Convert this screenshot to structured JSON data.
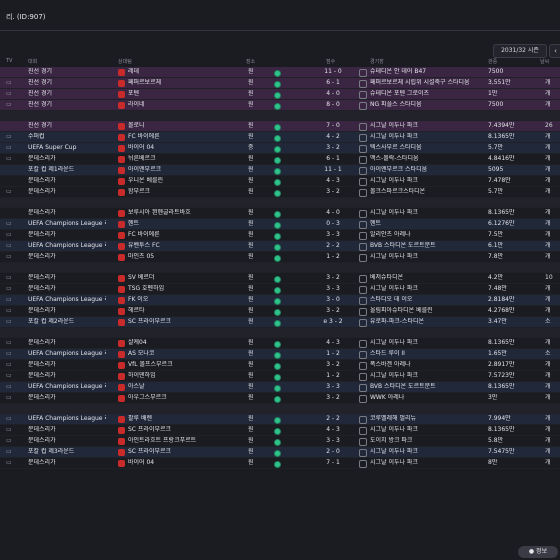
{
  "window": {
    "title": "리. (ID:907)"
  },
  "filters": {
    "season": "2031/32 시즌",
    "prev_icon": "chevron-left-icon"
  },
  "columns": {
    "tv": "TV",
    "competition": "대회",
    "opponent": "상대팀",
    "venue": "장소",
    "result": "",
    "score": "점수",
    "stadium": "경기장",
    "attendance": "관중",
    "rating": "날씨"
  },
  "rows": [
    {
      "tv": "",
      "comp": "친선 경기",
      "opp": "레데",
      "venue": "원",
      "score": "11 - 0",
      "stadium": "슈테디온 안 데어 B47",
      "att": "7500",
      "rating": "",
      "type": "cup"
    },
    {
      "tv": "▭",
      "comp": "친선 경기",
      "opp": "페퍼르보르체",
      "venue": "원",
      "score": "6 - 1",
      "stadium": "페퍼르보르체 시립위 시설축구 스타디움",
      "att": "3,551만",
      "rating": "개",
      "type": "cup"
    },
    {
      "tv": "▭",
      "comp": "친선 경기",
      "opp": "포텐",
      "venue": "원",
      "score": "4 - 0",
      "stadium": "슈테디온 포텐 그로이츠",
      "att": "1만",
      "rating": "개",
      "type": "cup"
    },
    {
      "tv": "▭",
      "comp": "친선 경기",
      "opp": "라이네",
      "venue": "원",
      "score": "8 - 0",
      "stadium": "NG 피플스 스타디움",
      "att": "7500",
      "rating": "개",
      "type": "cup"
    },
    {
      "tv": "",
      "comp": "",
      "opp": "",
      "venue": "",
      "score": "",
      "stadium": "",
      "att": "",
      "rating": "",
      "type": "gap"
    },
    {
      "tv": "",
      "comp": "친선 경기",
      "opp": "볼로니",
      "venue": "원",
      "score": "7 - 0",
      "stadium": "시그날 이두나 파크",
      "att": "7.4394만",
      "rating": "26",
      "type": "cup"
    },
    {
      "tv": "▭",
      "comp": "수퍼컵",
      "opp": "FC 바이에른",
      "venue": "원",
      "score": "4 - 2",
      "stadium": "시그날 이두나 파크",
      "att": "8.1365만",
      "rating": "개",
      "type": "away"
    },
    {
      "tv": "▭",
      "comp": "UEFA Super Cup",
      "opp": "바이어 04",
      "venue": "중",
      "score": "3 - 2",
      "stadium": "텍스사부르 스타디움",
      "att": "5.7만",
      "rating": "개",
      "type": "away"
    },
    {
      "tv": "▭",
      "comp": "분데스리가",
      "opp": "뉘른베르크",
      "venue": "원",
      "score": "6 - 1",
      "stadium": "맥스-몰락-스타디움",
      "att": "4.8416만",
      "rating": "개",
      "type": "league"
    },
    {
      "tv": "",
      "comp": "포칼 컵 제1라운드",
      "opp": "아이엔부르크",
      "venue": "원",
      "score": "11 - 1",
      "stadium": "아이엔부르크 스타디움",
      "att": "5095",
      "rating": "개",
      "type": "away"
    },
    {
      "tv": "",
      "comp": "분데스리가",
      "opp": "우니온 베를린",
      "venue": "원",
      "score": "4 - 3",
      "stadium": "시그날 이두나 파크",
      "att": "7.478만",
      "rating": "개",
      "type": "league"
    },
    {
      "tv": "▭",
      "comp": "분데스리가",
      "opp": "함부르크",
      "venue": "원",
      "score": "3 - 2",
      "stadium": "볼크스파르크스타디온",
      "att": "5.7만",
      "rating": "개",
      "type": "league"
    },
    {
      "tv": "",
      "comp": "",
      "opp": "",
      "venue": "",
      "score": "",
      "stadium": "",
      "att": "",
      "rating": "",
      "type": "gap"
    },
    {
      "tv": "",
      "comp": "분데스리가",
      "opp": "보루시아 묀헨글라트바흐",
      "venue": "원",
      "score": "4 - 0",
      "stadium": "시그날 이두나 파크",
      "att": "8.1365만",
      "rating": "개",
      "type": "league"
    },
    {
      "tv": "▭",
      "comp": "UEFA Champions League 리...",
      "opp": "헨트",
      "venue": "원",
      "score": "0 - 3",
      "stadium": "헨트",
      "att": "6.1276만",
      "rating": "개",
      "type": "away"
    },
    {
      "tv": "▭",
      "comp": "분데스리가",
      "opp": "FC 바이에른",
      "venue": "원",
      "score": "3 - 3",
      "stadium": "알리안츠 아레나",
      "att": "7.5만",
      "rating": "개",
      "type": "league"
    },
    {
      "tv": "▭",
      "comp": "UEFA Champions League 리...",
      "opp": "유벤투스 FC",
      "venue": "원",
      "score": "2 - 2",
      "stadium": "BVB 스타디온 도르트문트",
      "att": "6.1만",
      "rating": "개",
      "type": "away"
    },
    {
      "tv": "▭",
      "comp": "분데스리가",
      "opp": "마인츠 05",
      "venue": "원",
      "score": "1 - 2",
      "stadium": "시그날 이두나 파크",
      "att": "7.8만",
      "rating": "개",
      "type": "league"
    },
    {
      "tv": "",
      "comp": "",
      "opp": "",
      "venue": "",
      "score": "",
      "stadium": "",
      "att": "",
      "rating": "",
      "type": "gap"
    },
    {
      "tv": "▭",
      "comp": "분데스리가",
      "opp": "SV 베르더",
      "venue": "원",
      "score": "3 - 2",
      "stadium": "베저슈타디온",
      "att": "4.2만",
      "rating": "10",
      "type": "league"
    },
    {
      "tv": "▭",
      "comp": "분데스리가",
      "opp": "TSG 호펜하임",
      "venue": "원",
      "score": "3 - 3",
      "stadium": "시그날 이두나 파크",
      "att": "7.48만",
      "rating": "개",
      "type": "league"
    },
    {
      "tv": "▭",
      "comp": "UEFA Champions League 리...",
      "opp": "FK 이오",
      "venue": "원",
      "score": "3 - 0",
      "stadium": "스타디오 데 이오",
      "att": "2.8184만",
      "rating": "개",
      "type": "away"
    },
    {
      "tv": "▭",
      "comp": "분데스리가",
      "opp": "헤르타",
      "venue": "원",
      "score": "3 - 2",
      "stadium": "올림피아슈타디온 베를린",
      "att": "4.2768만",
      "rating": "개",
      "type": "league"
    },
    {
      "tv": "▭",
      "comp": "포칼 컵 제2라운드",
      "opp": "SC 프라이부르크",
      "venue": "원",
      "score": "e 3 - 2",
      "stadium": "유로파-파크-스타디온",
      "att": "3.47만",
      "rating": "소",
      "type": "away"
    },
    {
      "tv": "",
      "comp": "",
      "opp": "",
      "venue": "",
      "score": "",
      "stadium": "",
      "att": "",
      "rating": "",
      "type": "gap"
    },
    {
      "tv": "▭",
      "comp": "분데스리가",
      "opp": "샬케04",
      "venue": "원",
      "score": "4 - 3",
      "stadium": "시그날 이두나 파크",
      "att": "8.1365만",
      "rating": "개",
      "type": "league"
    },
    {
      "tv": "▭",
      "comp": "UEFA Champions League 리...",
      "opp": "AS 모나코",
      "venue": "원",
      "score": "1 - 2",
      "stadium": "스타드 루이 II",
      "att": "1.65만",
      "rating": "소",
      "type": "away"
    },
    {
      "tv": "▭",
      "comp": "분데스리가",
      "opp": "VfL 볼프스부르크",
      "venue": "원",
      "score": "3 - 2",
      "stadium": "폭스바겐 아레나",
      "att": "2.8917만",
      "rating": "개",
      "type": "league"
    },
    {
      "tv": "▭",
      "comp": "분데스리가",
      "opp": "하이덴하임",
      "venue": "원",
      "score": "1 - 2",
      "stadium": "시그날 이두나 파크",
      "att": "7.5723만",
      "rating": "개",
      "type": "league"
    },
    {
      "tv": "▭",
      "comp": "UEFA Champions League 리...",
      "opp": "아스날",
      "venue": "원",
      "score": "3 - 3",
      "stadium": "BVB 스타디온 도르트문트",
      "att": "8.1365만",
      "rating": "개",
      "type": "away"
    },
    {
      "tv": "▭",
      "comp": "분데스리가",
      "opp": "아우그스부르크",
      "venue": "원",
      "score": "3 - 2",
      "stadium": "WWK 아레나",
      "att": "3만",
      "rating": "개",
      "type": "league"
    },
    {
      "tv": "",
      "comp": "",
      "opp": "",
      "venue": "",
      "score": "",
      "stadium": "",
      "att": "",
      "rating": "",
      "type": "gap"
    },
    {
      "tv": "▭",
      "comp": "UEFA Champions League 리...",
      "opp": "팔루 배렌",
      "venue": "원",
      "score": "2 - 2",
      "stadium": "코루벨레해 멀리뉴",
      "att": "7.994만",
      "rating": "개",
      "type": "away"
    },
    {
      "tv": "▭",
      "comp": "분데스리가",
      "opp": "SC 프라이부르크",
      "venue": "원",
      "score": "4 - 3",
      "stadium": "시그날 이두나 파크",
      "att": "8.1365만",
      "rating": "개",
      "type": "league"
    },
    {
      "tv": "▭",
      "comp": "분데스리가",
      "opp": "아인트라흐트 프랑크푸르트",
      "venue": "원",
      "score": "3 - 3",
      "stadium": "도이치 방크 파크",
      "att": "5.8만",
      "rating": "개",
      "type": "league"
    },
    {
      "tv": "▭",
      "comp": "포칼 컵 제3라운드",
      "opp": "SC 프라이부르크",
      "venue": "원",
      "score": "2 - 0",
      "stadium": "시그날 이두나 파크",
      "att": "7.5475만",
      "rating": "개",
      "type": "away"
    },
    {
      "tv": "▭",
      "comp": "분데스리가",
      "opp": "바이어 04",
      "venue": "원",
      "score": "7 - 1",
      "stadium": "시그날 이두나 파크",
      "att": "8만",
      "rating": "개",
      "type": "league"
    }
  ],
  "corner": {
    "label": "● 정보"
  }
}
